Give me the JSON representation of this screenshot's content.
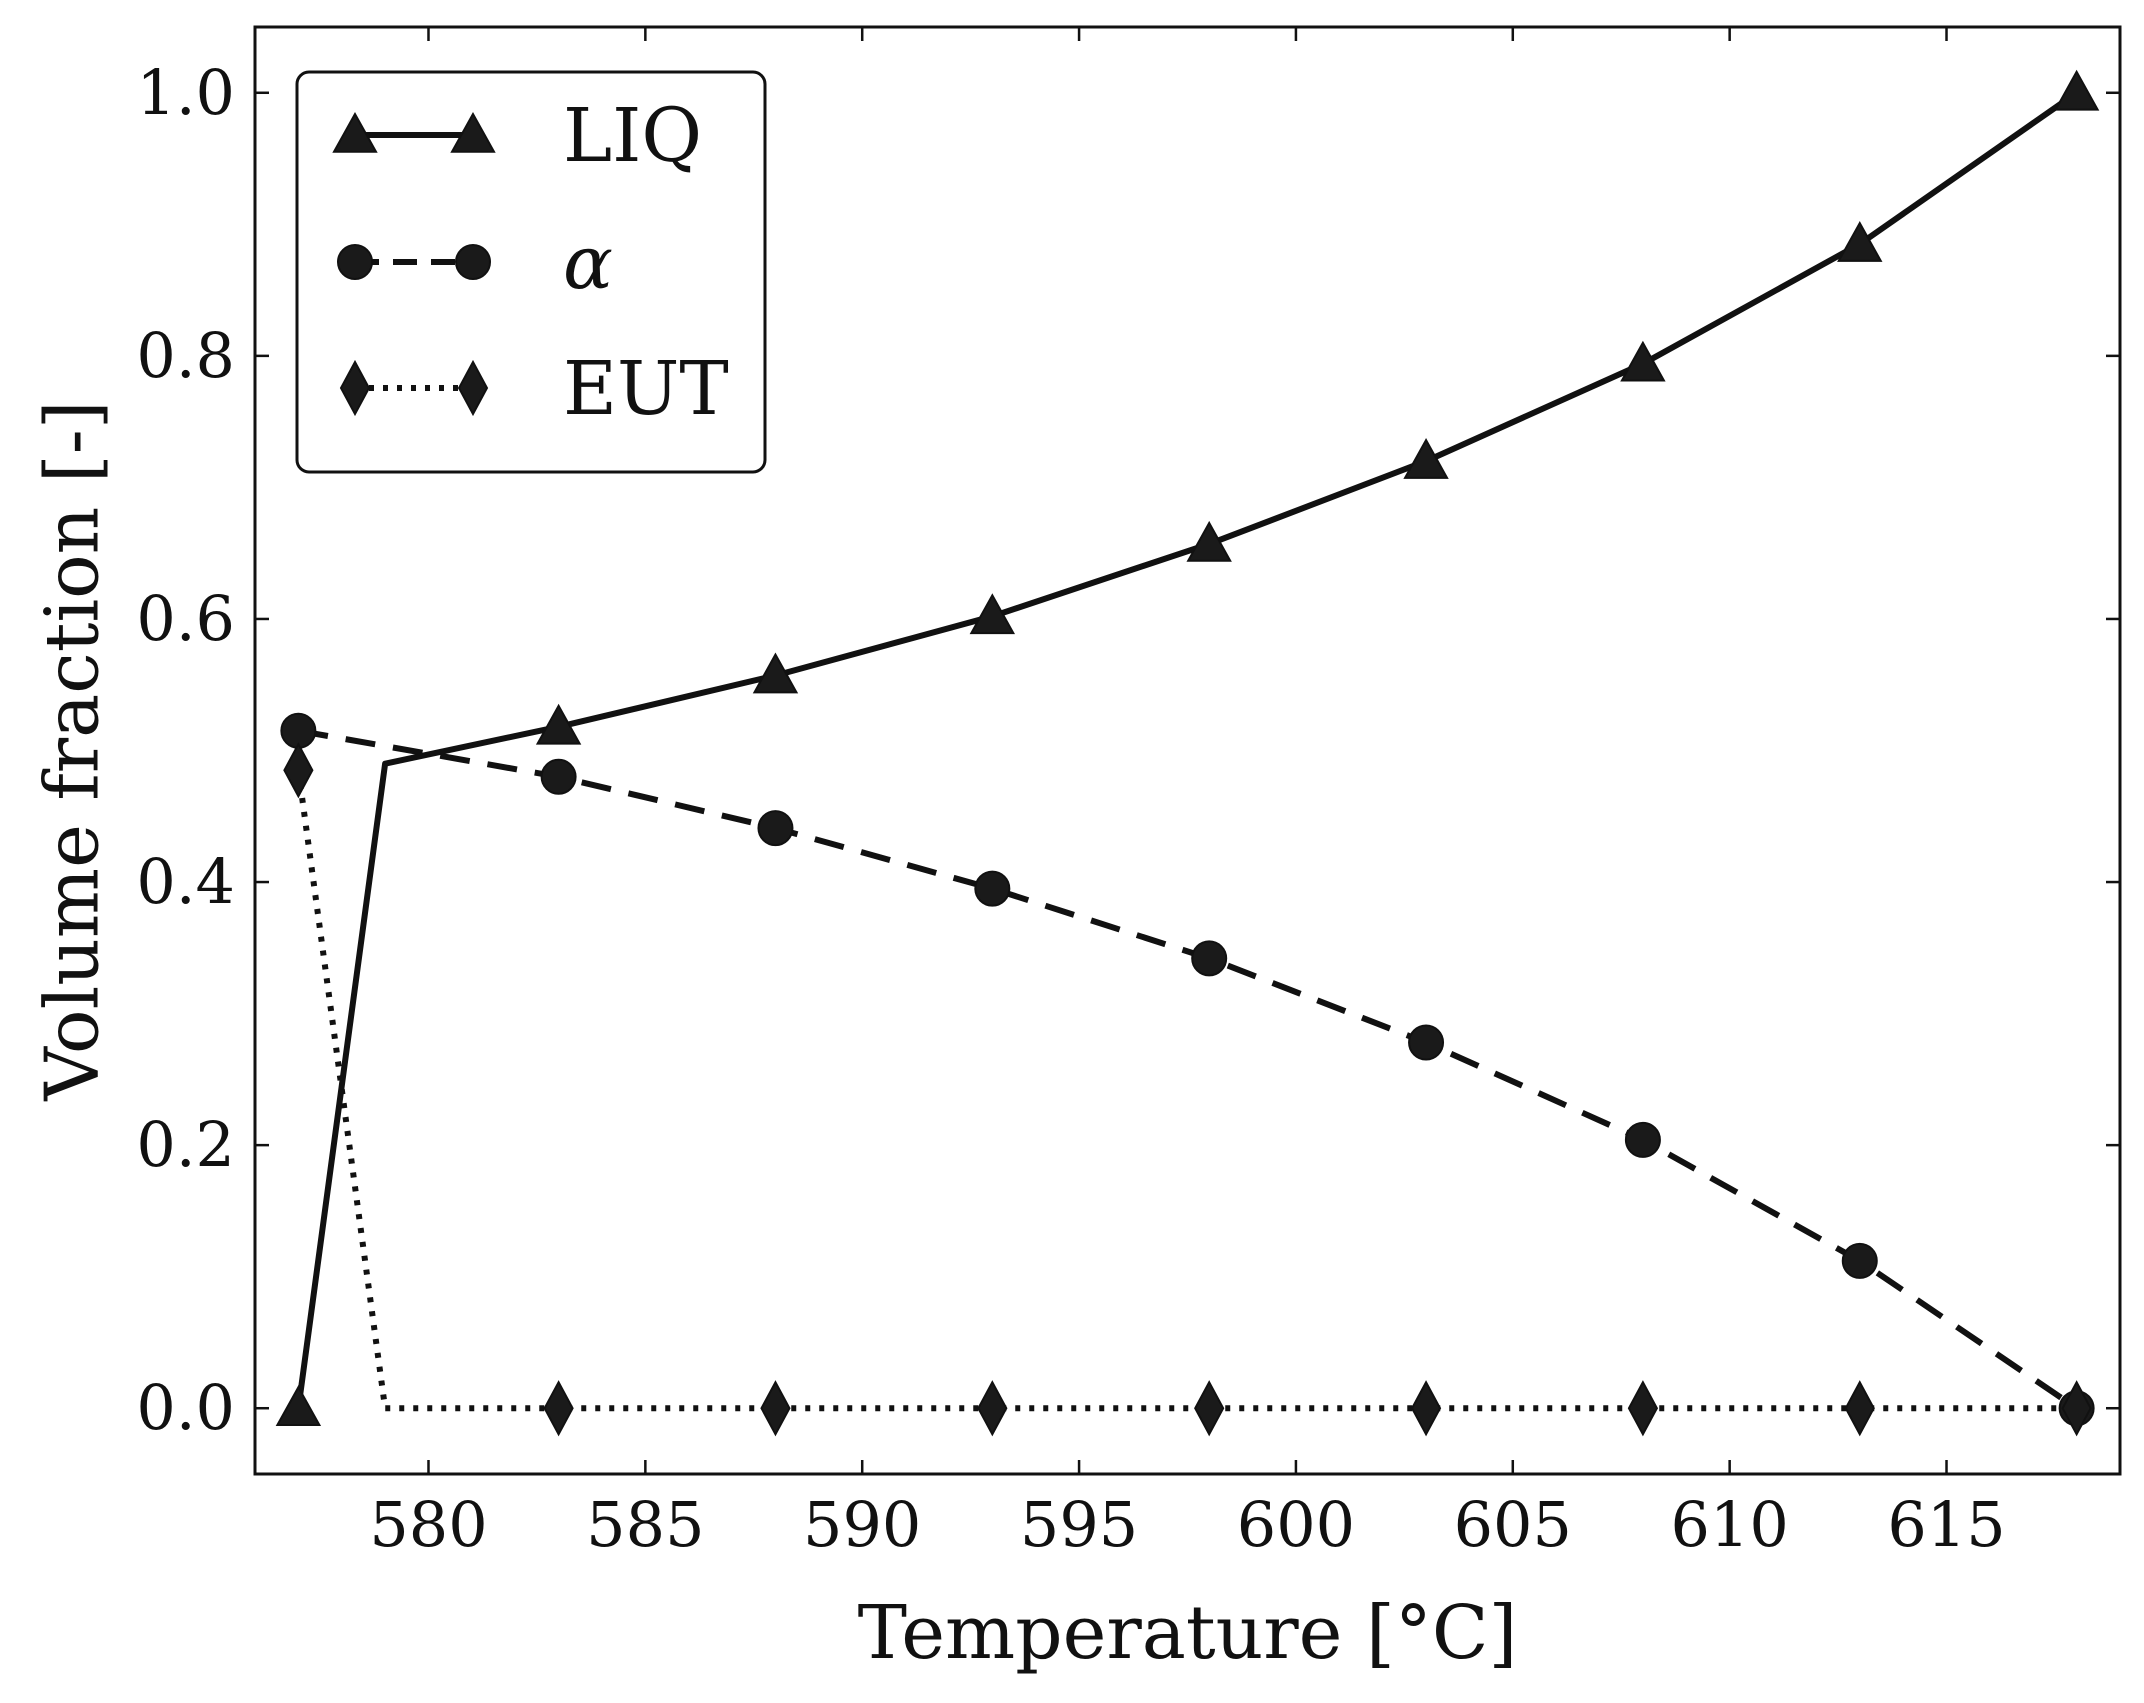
{
  "chart_data": {
    "type": "line",
    "xlabel": "Temperature [°C]",
    "ylabel": "Volume fraction [-]",
    "xlim": [
      576,
      619
    ],
    "ylim": [
      -0.05,
      1.05
    ],
    "xticks": [
      580,
      585,
      590,
      595,
      600,
      605,
      610,
      615
    ],
    "yticks": [
      0.0,
      0.2,
      0.4,
      0.6,
      0.8,
      1.0
    ],
    "xtick_labels": [
      "580",
      "585",
      "590",
      "595",
      "600",
      "605",
      "610",
      "615"
    ],
    "ytick_labels": [
      "0.0",
      "0.2",
      "0.4",
      "0.6",
      "0.8",
      "1.0"
    ],
    "grid": false,
    "legend_position": "top-left",
    "series": [
      {
        "name": "LIQ",
        "style": "solid",
        "marker": "triangle",
        "x": [
          577,
          579,
          583,
          588,
          593,
          598,
          603,
          608,
          613,
          618
        ],
        "y": [
          0.0,
          0.49,
          0.518,
          0.557,
          0.602,
          0.657,
          0.72,
          0.794,
          0.885,
          1.0
        ],
        "marker_x": [
          577,
          583,
          588,
          593,
          598,
          603,
          608,
          613,
          618
        ],
        "marker_y": [
          0.0,
          0.518,
          0.557,
          0.602,
          0.657,
          0.72,
          0.794,
          0.885,
          1.0
        ]
      },
      {
        "name": "α",
        "style": "dashed",
        "marker": "circle",
        "x": [
          577,
          583,
          588,
          593,
          598,
          603,
          608,
          613,
          618
        ],
        "y": [
          0.515,
          0.48,
          0.441,
          0.395,
          0.342,
          0.278,
          0.204,
          0.112,
          0.0
        ],
        "marker_x": [
          577,
          583,
          588,
          593,
          598,
          603,
          608,
          613,
          618
        ],
        "marker_y": [
          0.515,
          0.48,
          0.441,
          0.395,
          0.342,
          0.278,
          0.204,
          0.112,
          0.0
        ]
      },
      {
        "name": "EUT",
        "style": "dotted",
        "marker": "diamond",
        "x": [
          577,
          579,
          583,
          588,
          593,
          598,
          603,
          608,
          613,
          618
        ],
        "y": [
          0.485,
          0.0,
          0.0,
          0.0,
          0.0,
          0.0,
          0.0,
          0.0,
          0.0,
          0.0
        ],
        "marker_x": [
          577,
          583,
          588,
          593,
          598,
          603,
          608,
          613,
          618
        ],
        "marker_y": [
          0.485,
          0.0,
          0.0,
          0.0,
          0.0,
          0.0,
          0.0,
          0.0,
          0.0
        ]
      }
    ]
  }
}
